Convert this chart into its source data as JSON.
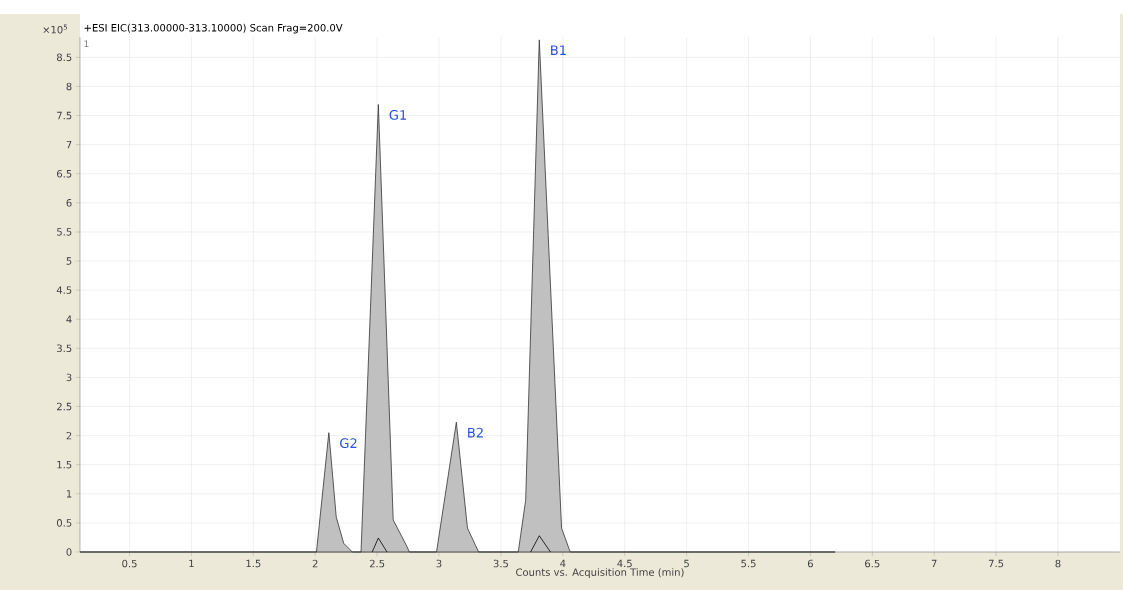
{
  "chart_data": {
    "type": "area",
    "title": "+ESI EIC(313.00000-313.10000) Scan Frag=200.0V",
    "xlabel": "Counts vs. Acquisition Time (min)",
    "ylabel": "×10$^{5}$",
    "series": [
      {
        "color": "#c0c0c0",
        "x": [
          0.1,
          2.01,
          2.11,
          2.17,
          2.23,
          2.3,
          2.37,
          2.51,
          2.63,
          2.74,
          2.76,
          2.98,
          3.14,
          3.23,
          3.32,
          3.64,
          3.7,
          3.81,
          3.99,
          4.06,
          6.2
        ],
        "values": [
          0,
          0,
          2.05,
          0.6,
          0.15,
          0,
          0,
          7.69,
          0.55,
          0.1,
          0,
          0,
          2.23,
          0.41,
          0,
          0,
          0.89,
          8.8,
          0.41,
          0,
          0
        ]
      },
      {
        "type": "line",
        "color": "#000000",
        "x": [
          2.46,
          2.51,
          2.58,
          3.2,
          3.74,
          3.81,
          3.9
        ],
        "values": [
          0,
          0.24,
          0,
          null,
          0,
          0.28,
          0
        ]
      }
    ],
    "xlim": [
      0.1,
      8.5
    ],
    "ylim": [
      0,
      8.85
    ],
    "xticks": [
      0.5,
      1,
      1.5,
      2,
      2.5,
      3,
      3.5,
      4,
      4.5,
      5,
      5.5,
      6,
      6.5,
      7,
      7.5,
      8
    ],
    "yticks": [
      0,
      0.5,
      1,
      1.5,
      2,
      2.5,
      3,
      3.5,
      4,
      4.5,
      5,
      5.5,
      6,
      6.5,
      7,
      7.5,
      8,
      8.5
    ],
    "grid": true,
    "annotations": [
      "1",
      {
        "text": "G2",
        "x": 2.11,
        "y": 2.05
      },
      {
        "text": "G1",
        "x": 2.51,
        "y": 7.69
      },
      {
        "text": "B2",
        "x": 3.14,
        "y": 2.23
      },
      {
        "text": "B1",
        "x": 3.81,
        "y": 8.8
      }
    ]
  }
}
